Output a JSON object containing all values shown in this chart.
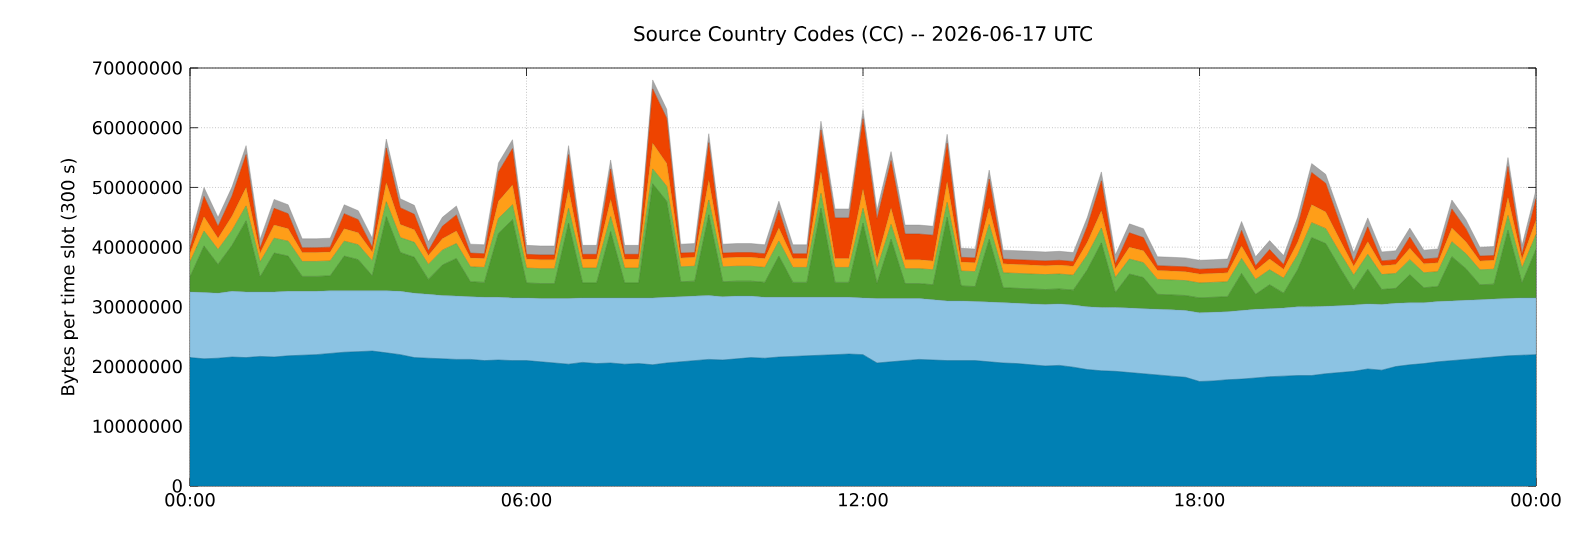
{
  "chart_data": {
    "type": "area",
    "stacked": true,
    "title": "Source Country Codes (CC) -- 2026-06-17 UTC",
    "ylabel": "Bytes per time slot (300 s)",
    "x": [
      0,
      0.25,
      0.5,
      0.75,
      1,
      1.25,
      1.5,
      1.75,
      2,
      2.25,
      2.5,
      2.75,
      3,
      3.25,
      3.5,
      3.75,
      4,
      4.25,
      4.5,
      4.75,
      5,
      5.25,
      5.5,
      5.75,
      6,
      6.25,
      6.5,
      6.75,
      7,
      7.25,
      7.5,
      7.75,
      8,
      8.25,
      8.5,
      8.75,
      9,
      9.25,
      9.5,
      9.75,
      10,
      10.25,
      10.5,
      10.75,
      11,
      11.25,
      11.5,
      11.75,
      12,
      12.25,
      12.5,
      12.75,
      13,
      13.25,
      13.5,
      13.75,
      14,
      14.25,
      14.5,
      14.75,
      15,
      15.25,
      15.5,
      15.75,
      16,
      16.25,
      16.5,
      16.75,
      17,
      17.25,
      17.5,
      17.75,
      18,
      18.25,
      18.5,
      18.75,
      19,
      19.25,
      19.5,
      19.75,
      20,
      20.25,
      20.5,
      20.75,
      21,
      21.25,
      21.5,
      21.75,
      22,
      22.25,
      22.5,
      22.75,
      23,
      23.25,
      23.5,
      23.75,
      24
    ],
    "xlim": [
      0,
      24
    ],
    "xticks": [
      {
        "value": 0,
        "label": "00:00"
      },
      {
        "value": 6,
        "label": "06:00"
      },
      {
        "value": 12,
        "label": "12:00"
      },
      {
        "value": 18,
        "label": "18:00"
      },
      {
        "value": 24,
        "label": "00:00"
      }
    ],
    "ylim": [
      0,
      70000000
    ],
    "yticks": [
      0,
      10000000,
      20000000,
      30000000,
      40000000,
      50000000,
      60000000,
      70000000
    ],
    "grid": true,
    "series": [
      {
        "color": "#0080b4",
        "values": [
          21500000,
          21300000,
          21400000,
          21600000,
          21500000,
          21700000,
          21600000,
          21800000,
          21900000,
          22000000,
          22200000,
          22400000,
          22500000,
          22600000,
          22300000,
          22000000,
          21500000,
          21400000,
          21300000,
          21200000,
          21200000,
          21000000,
          21100000,
          21000000,
          21000000,
          20800000,
          20600000,
          20400000,
          20700000,
          20500000,
          20600000,
          20400000,
          20500000,
          20300000,
          20600000,
          20800000,
          21000000,
          21200000,
          21100000,
          21300000,
          21500000,
          21400000,
          21600000,
          21700000,
          21800000,
          21900000,
          22000000,
          22100000,
          22000000,
          20600000,
          20800000,
          21000000,
          21200000,
          21100000,
          21000000,
          21000000,
          21000000,
          20800000,
          20600000,
          20500000,
          20300000,
          20100000,
          20200000,
          19900000,
          19500000,
          19300000,
          19200000,
          19000000,
          18800000,
          18600000,
          18400000,
          18200000,
          17500000,
          17600000,
          17800000,
          17900000,
          18100000,
          18300000,
          18400000,
          18500000,
          18500000,
          18800000,
          19000000,
          19200000,
          19600000,
          19400000,
          20000000,
          20300000,
          20500000,
          20800000,
          21000000,
          21200000,
          21400000,
          21600000,
          21800000,
          21900000,
          22000000
        ]
      },
      {
        "color": "#8cc3e3",
        "values": [
          11000000,
          11100000,
          10900000,
          11000000,
          11000000,
          10800000,
          10900000,
          10800000,
          10700000,
          10600000,
          10500000,
          10300000,
          10200000,
          10100000,
          10400000,
          10600000,
          10800000,
          10700000,
          10600000,
          10600000,
          10500000,
          10600000,
          10500000,
          10500000,
          10500000,
          10600000,
          10800000,
          11000000,
          10800000,
          11000000,
          10900000,
          11100000,
          11000000,
          11200000,
          11000000,
          10900000,
          10800000,
          10700000,
          10600000,
          10500000,
          10300000,
          10200000,
          10000000,
          9900000,
          9800000,
          9700000,
          9600000,
          9500000,
          9500000,
          10800000,
          10600000,
          10400000,
          10200000,
          10100000,
          10000000,
          10000000,
          9900000,
          10000000,
          10100000,
          10100000,
          10200000,
          10300000,
          10300000,
          10400000,
          10500000,
          10600000,
          10700000,
          10800000,
          10900000,
          11000000,
          11100000,
          11200000,
          11500000,
          11500000,
          11400000,
          11500000,
          11500000,
          11400000,
          11400000,
          11500000,
          11500000,
          11300000,
          11200000,
          11100000,
          10900000,
          11000000,
          10600000,
          10400000,
          10200000,
          10100000,
          10000000,
          9900000,
          9800000,
          9700000,
          9600000,
          9600000,
          9500000
        ]
      },
      {
        "color": "#4e9a2e",
        "values": [
          2500000,
          7800000,
          4800000,
          7700000,
          11900000,
          2500000,
          6500000,
          5900000,
          2500000,
          2500000,
          2500000,
          5800000,
          5200000,
          2500000,
          12400000,
          6500000,
          6000000,
          2500000,
          5100000,
          6300000,
          2500000,
          2500000,
          10700000,
          13100000,
          2500000,
          2500000,
          2500000,
          12600000,
          2500000,
          2500000,
          11100000,
          2500000,
          2500000,
          19100000,
          16100000,
          2500000,
          2500000,
          13500000,
          2500000,
          2500000,
          2500000,
          2500000,
          6900000,
          2500000,
          2500000,
          14900000,
          2500000,
          2500000,
          12500000,
          2500000,
          9900000,
          2500000,
          2500000,
          2500000,
          14000000,
          2500000,
          2500000,
          10500000,
          2500000,
          2500000,
          2500000,
          2500000,
          2500000,
          2500000,
          6200000,
          10800000,
          2500000,
          5700000,
          5200000,
          2500000,
          2500000,
          2500000,
          2500000,
          2500000,
          2500000,
          6200000,
          2500000,
          4000000,
          2500000,
          6200000,
          11600000,
          10500000,
          6400000,
          2500000,
          5800000,
          2500000,
          2500000,
          4700000,
          2500000,
          2500000,
          7400000,
          5300000,
          2500000,
          2500000,
          11400000,
          2500000,
          8100000
        ]
      },
      {
        "color": "#6dbb4f",
        "values": [
          2500000,
          2500000,
          2500000,
          2500000,
          2500000,
          2500000,
          2500000,
          2500000,
          2500000,
          2500000,
          2500000,
          2500000,
          2500000,
          2500000,
          2500000,
          2500000,
          2500000,
          2500000,
          2500000,
          2500000,
          2500000,
          2500000,
          2500000,
          2500000,
          2500000,
          2500000,
          2500000,
          2500000,
          2500000,
          2500000,
          2500000,
          2500000,
          2500000,
          2500000,
          2500000,
          2500000,
          2500000,
          2500000,
          2500000,
          2500000,
          2500000,
          2500000,
          2500000,
          2500000,
          2500000,
          2500000,
          2500000,
          2500000,
          2500000,
          2500000,
          2500000,
          2500000,
          2500000,
          2500000,
          2500000,
          2500000,
          2500000,
          2500000,
          2500000,
          2500000,
          2500000,
          2500000,
          2500000,
          2500000,
          2500000,
          2500000,
          2500000,
          2500000,
          2500000,
          2500000,
          2500000,
          2500000,
          2500000,
          2500000,
          2500000,
          2500000,
          2500000,
          2500000,
          2500000,
          2500000,
          2500000,
          2500000,
          2500000,
          2500000,
          2500000,
          2500000,
          2500000,
          2500000,
          2500000,
          2500000,
          2500000,
          2500000,
          2500000,
          2500000,
          2500000,
          2500000,
          2500000
        ]
      },
      {
        "color": "#ff9e18",
        "values": [
          1500000,
          2400000,
          1900000,
          2400000,
          3100000,
          1500000,
          2200000,
          2100000,
          1500000,
          1500000,
          1500000,
          2100000,
          2000000,
          1500000,
          3200000,
          2200000,
          2100000,
          1500000,
          1900000,
          2100000,
          1500000,
          1500000,
          2900000,
          3300000,
          1500000,
          1500000,
          1500000,
          3200000,
          1500000,
          1500000,
          2900000,
          1500000,
          1500000,
          4300000,
          3800000,
          1500000,
          1500000,
          3300000,
          1500000,
          1500000,
          1500000,
          1500000,
          2200000,
          1500000,
          1500000,
          3600000,
          1500000,
          1500000,
          3200000,
          1500000,
          2700000,
          1500000,
          1500000,
          1500000,
          3400000,
          1500000,
          1500000,
          2800000,
          1500000,
          1500000,
          1500000,
          1500000,
          1500000,
          1500000,
          2100000,
          2900000,
          1500000,
          2000000,
          2000000,
          1500000,
          1500000,
          1500000,
          1500000,
          1500000,
          1500000,
          2100000,
          1500000,
          1800000,
          1500000,
          2100000,
          3000000,
          2800000,
          2200000,
          1500000,
          2100000,
          1500000,
          1500000,
          1900000,
          1500000,
          1500000,
          2300000,
          2000000,
          1500000,
          1500000,
          3000000,
          1500000,
          2400000
        ]
      },
      {
        "color": "#ee4400",
        "values": [
          800000,
          3400000,
          2000000,
          3400000,
          5500000,
          800000,
          2800000,
          2500000,
          800000,
          800000,
          800000,
          2500000,
          2200000,
          800000,
          5800000,
          2800000,
          2600000,
          800000,
          2100000,
          2700000,
          800000,
          800000,
          4900000,
          6100000,
          800000,
          800000,
          800000,
          5800000,
          800000,
          800000,
          5100000,
          800000,
          800000,
          9100000,
          7600000,
          800000,
          800000,
          6300000,
          800000,
          800000,
          800000,
          800000,
          3000000,
          800000,
          800000,
          7000000,
          6800000,
          6800000,
          11800000,
          6800000,
          8000000,
          4300000,
          4300000,
          4300000,
          6500000,
          800000,
          800000,
          4800000,
          800000,
          800000,
          800000,
          800000,
          800000,
          800000,
          2700000,
          5000000,
          800000,
          2400000,
          2200000,
          800000,
          800000,
          800000,
          800000,
          800000,
          800000,
          2600000,
          800000,
          1600000,
          800000,
          2700000,
          5400000,
          4800000,
          2800000,
          800000,
          2500000,
          800000,
          800000,
          1900000,
          800000,
          800000,
          3200000,
          2200000,
          800000,
          800000,
          5200000,
          800000,
          3600000
        ]
      },
      {
        "color": "#a5a5a5",
        "values": [
          1500000,
          1500000,
          1500000,
          1500000,
          1500000,
          1500000,
          1500000,
          1500000,
          1500000,
          1500000,
          1500000,
          1500000,
          1500000,
          1500000,
          1500000,
          1500000,
          1500000,
          1500000,
          1500000,
          1500000,
          1500000,
          1500000,
          1500000,
          1500000,
          1500000,
          1500000,
          1500000,
          1500000,
          1500000,
          1500000,
          1500000,
          1500000,
          1500000,
          1500000,
          1500000,
          1500000,
          1500000,
          1500000,
          1500000,
          1500000,
          1500000,
          1500000,
          1500000,
          1500000,
          1500000,
          1500000,
          1500000,
          1500000,
          1500000,
          1500000,
          1500000,
          1500000,
          1500000,
          1500000,
          1500000,
          1500000,
          1500000,
          1500000,
          1500000,
          1500000,
          1500000,
          1500000,
          1500000,
          1500000,
          1500000,
          1500000,
          1500000,
          1500000,
          1500000,
          1500000,
          1500000,
          1500000,
          1500000,
          1500000,
          1500000,
          1500000,
          1500000,
          1500000,
          1500000,
          1500000,
          1500000,
          1500000,
          1500000,
          1500000,
          1500000,
          1500000,
          1500000,
          1500000,
          1500000,
          1500000,
          1500000,
          1500000,
          1500000,
          1500000,
          1500000,
          1500000,
          1500000
        ]
      }
    ]
  }
}
